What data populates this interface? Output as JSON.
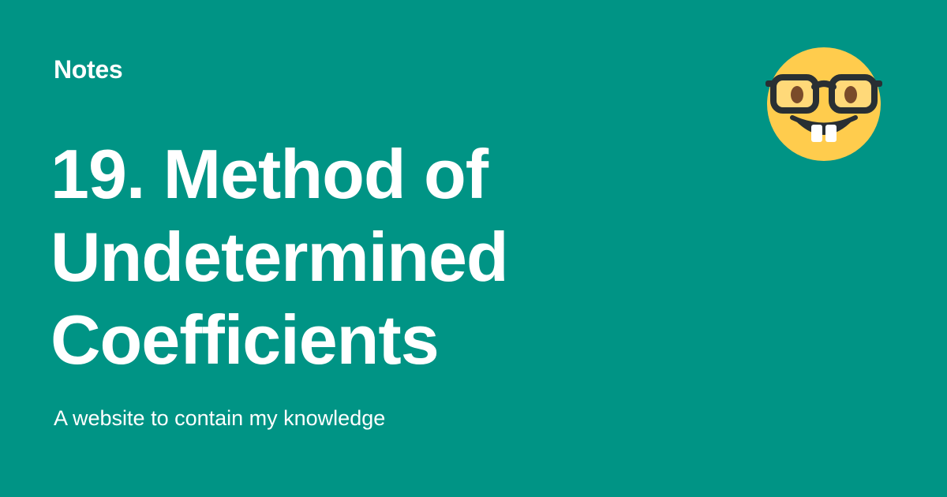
{
  "header": {
    "site_name": "Notes"
  },
  "main": {
    "title_lines": [
      "19. Method of",
      "Undetermined",
      "Coefficients"
    ],
    "subtitle": "A website to contain my knowledge"
  },
  "icons": {
    "logo": "nerd-face-emoji-icon"
  },
  "colors": {
    "background": "#009485",
    "text": "#ffffff",
    "emoji_face": "#FFCC4D",
    "emoji_features": "#292F33"
  }
}
